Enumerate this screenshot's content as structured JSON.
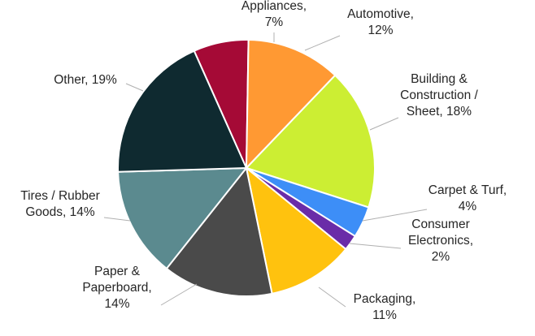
{
  "chart_data": {
    "type": "pie",
    "title": "",
    "slices": [
      {
        "name": "Appliances",
        "value": 7,
        "label_lines": [
          "Appliances,",
          "7%"
        ],
        "color": "#a50a36"
      },
      {
        "name": "Automotive",
        "value": 12,
        "label_lines": [
          "Automotive,",
          "12%"
        ],
        "color": "#ff9933"
      },
      {
        "name": "Building & Construction / Sheet",
        "value": 18,
        "label_lines": [
          "Building &",
          "Construction /",
          "Sheet, 18%"
        ],
        "color": "#ccee33"
      },
      {
        "name": "Carpet & Turf",
        "value": 4,
        "label_lines": [
          "Carpet & Turf,",
          "4%"
        ],
        "color": "#3d8ef7"
      },
      {
        "name": "Consumer Electronics",
        "value": 2,
        "label_lines": [
          "Consumer",
          "Electronics,",
          "2%"
        ],
        "color": "#6a2ca8"
      },
      {
        "name": "Packaging",
        "value": 11,
        "label_lines": [
          "Packaging,",
          "11%"
        ],
        "color": "#ffc20e"
      },
      {
        "name": "Paper & Paperboard",
        "value": 14,
        "label_lines": [
          "Paper &",
          "Paperboard,",
          "14%"
        ],
        "color": "#4a4a4a"
      },
      {
        "name": "Tires / Rubber Goods",
        "value": 14,
        "label_lines": [
          "Tires / Rubber",
          "Goods, 14%"
        ],
        "color": "#5b8a8f"
      },
      {
        "name": "Other",
        "value": 19,
        "label_lines": [
          "Other, 19%"
        ],
        "color": "#0f2a30"
      }
    ],
    "start_angle_deg": -24,
    "direction": "clockwise",
    "legend": "none (data labels with leader lines)"
  }
}
